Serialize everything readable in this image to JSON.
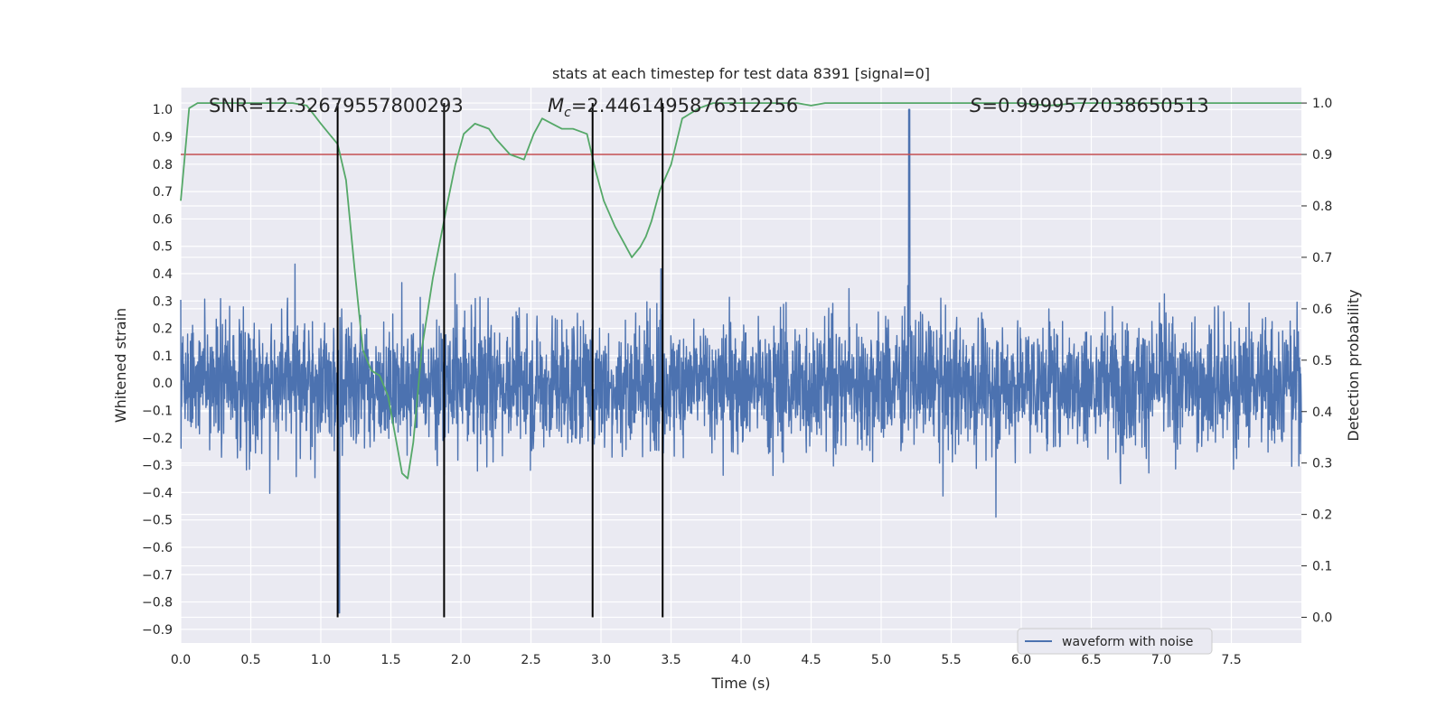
{
  "chart_data": {
    "type": "line",
    "title": "stats at each timestep for test data 8391 [signal=0]",
    "xlabel": "Time (s)",
    "ylabel": "Whitened strain",
    "y2label": "Detection probability",
    "xlim": [
      0.0,
      8.0
    ],
    "ylim": [
      -0.95,
      1.08
    ],
    "y2lim": [
      -0.05,
      1.03
    ],
    "xticks": [
      "0.0",
      "0.5",
      "1.0",
      "1.5",
      "2.0",
      "2.5",
      "3.0",
      "3.5",
      "4.0",
      "4.5",
      "5.0",
      "5.5",
      "6.0",
      "6.5",
      "7.0",
      "7.5"
    ],
    "yticks": [
      "1.0",
      "0.9",
      "0.8",
      "0.7",
      "0.6",
      "0.5",
      "0.4",
      "0.3",
      "0.2",
      "0.1",
      "0.0",
      "−0.1",
      "−0.2",
      "−0.3",
      "−0.4",
      "−0.5",
      "−0.6",
      "−0.7",
      "−0.8",
      "−0.9"
    ],
    "y2ticks": [
      "1.0",
      "0.9",
      "0.8",
      "0.7",
      "0.6",
      "0.5",
      "0.4",
      "0.3",
      "0.2",
      "0.1",
      "0.0"
    ],
    "annotations": {
      "snr": "SNR=12.32679557800293",
      "mc_symbol": "M",
      "mc_sub": "c",
      "mc_value": "=2.4461495876312256",
      "s_symbol": "S",
      "s_value": "=0.9999572038650513"
    },
    "legend": {
      "label": "waveform with noise",
      "placement": "lower-right"
    },
    "grid": true,
    "colors": {
      "background": "#eaeaf2",
      "grid": "#ffffff",
      "waveform": "#4c72b0",
      "probability": "#55a868",
      "threshold": "#c44e52",
      "marker": "#000000"
    },
    "threshold_probability": 0.9,
    "vertical_markers_s": [
      1.12,
      1.88,
      2.94,
      3.44
    ],
    "waveform_envelope": {
      "typical_peak": 0.5,
      "max_positive": 1.0,
      "max_positive_time": 5.2,
      "min_negative": -0.84,
      "min_negative_time": 1.13
    },
    "series": [
      {
        "name": "waveform with noise",
        "axis": "left"
      },
      {
        "axis": "right",
        "x": [
          0.0,
          0.06,
          0.12,
          0.2,
          0.3,
          0.4,
          0.5,
          0.6,
          0.7,
          0.8,
          0.9,
          1.0,
          1.06,
          1.12,
          1.18,
          1.24,
          1.3,
          1.36,
          1.42,
          1.48,
          1.54,
          1.58,
          1.62,
          1.66,
          1.72,
          1.8,
          1.9,
          1.96,
          2.02,
          2.1,
          2.2,
          2.25,
          2.35,
          2.45,
          2.52,
          2.58,
          2.65,
          2.72,
          2.8,
          2.9,
          2.96,
          3.02,
          3.1,
          3.16,
          3.22,
          3.28,
          3.32,
          3.36,
          3.42,
          3.5,
          3.58,
          3.7,
          3.8,
          4.0,
          4.2,
          4.4,
          4.5,
          4.6,
          4.8,
          5.0,
          5.2,
          5.4,
          5.6,
          5.8,
          6.0,
          6.2,
          6.4,
          6.6,
          6.8,
          7.0,
          7.2,
          7.4,
          7.6,
          7.8,
          8.0
        ],
        "values": [
          0.81,
          0.99,
          1.0,
          1.0,
          1.0,
          1.0,
          1.0,
          1.0,
          1.0,
          1.0,
          0.995,
          0.96,
          0.94,
          0.92,
          0.85,
          0.68,
          0.52,
          0.48,
          0.47,
          0.43,
          0.34,
          0.28,
          0.27,
          0.34,
          0.52,
          0.66,
          0.8,
          0.88,
          0.94,
          0.96,
          0.95,
          0.93,
          0.9,
          0.89,
          0.94,
          0.97,
          0.96,
          0.95,
          0.95,
          0.94,
          0.87,
          0.81,
          0.76,
          0.73,
          0.7,
          0.72,
          0.74,
          0.77,
          0.83,
          0.88,
          0.97,
          0.99,
          1.0,
          1.0,
          1.0,
          1.0,
          0.995,
          1.0,
          1.0,
          1.0,
          1.0,
          1.0,
          1.0,
          1.0,
          1.0,
          0.995,
          1.0,
          1.0,
          1.0,
          1.0,
          1.0,
          1.0,
          1.0,
          1.0,
          1.0
        ]
      }
    ]
  }
}
